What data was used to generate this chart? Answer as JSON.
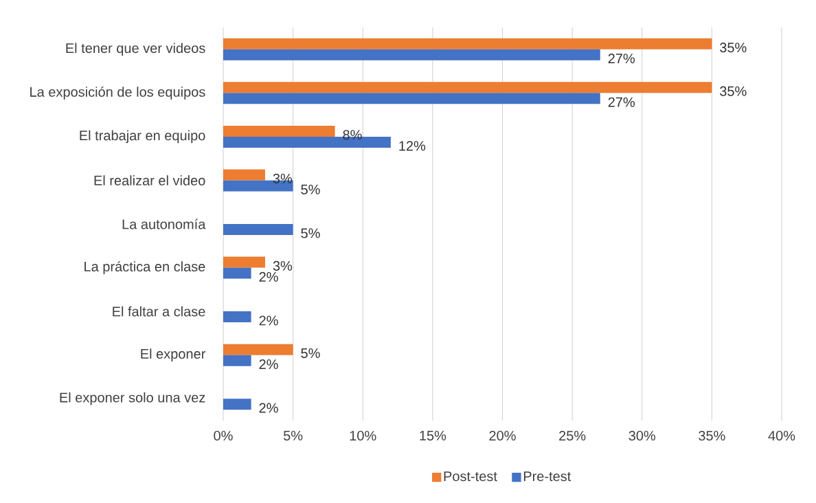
{
  "chart_data": {
    "type": "bar",
    "orientation": "horizontal",
    "categories": [
      "El tener que ver videos",
      "La exposición de los equipos",
      "El trabajar en equipo",
      "El realizar el video",
      "La autonomía",
      "La práctica en clase",
      "El faltar a clase",
      "El exponer",
      "El exponer solo una vez"
    ],
    "series": [
      {
        "name": "Post-test",
        "color": "#ed7d31",
        "values": [
          35,
          35,
          8,
          3,
          null,
          3,
          null,
          5,
          null
        ],
        "value_labels": [
          "35%",
          "35%",
          "8%",
          "3%",
          null,
          "3%",
          null,
          "5%",
          null
        ]
      },
      {
        "name": "Pre-test",
        "color": "#4472c4",
        "values": [
          27,
          27,
          12,
          5,
          5,
          2,
          2,
          2,
          2
        ],
        "value_labels": [
          "27%",
          "27%",
          "12%",
          "5%",
          "5%",
          "2%",
          "2%",
          "2%",
          "2%"
        ]
      }
    ],
    "xlim": [
      0,
      40
    ],
    "xticks": [
      {
        "value": 0,
        "label": "0%"
      },
      {
        "value": 5,
        "label": "5%"
      },
      {
        "value": 10,
        "label": "10%"
      },
      {
        "value": 15,
        "label": "15%"
      },
      {
        "value": 20,
        "label": "20%"
      },
      {
        "value": 25,
        "label": "25%"
      },
      {
        "value": 30,
        "label": "30%"
      },
      {
        "value": 35,
        "label": "35%"
      },
      {
        "value": 40,
        "label": "40%"
      }
    ],
    "grid": "x",
    "legend": "bottom"
  }
}
